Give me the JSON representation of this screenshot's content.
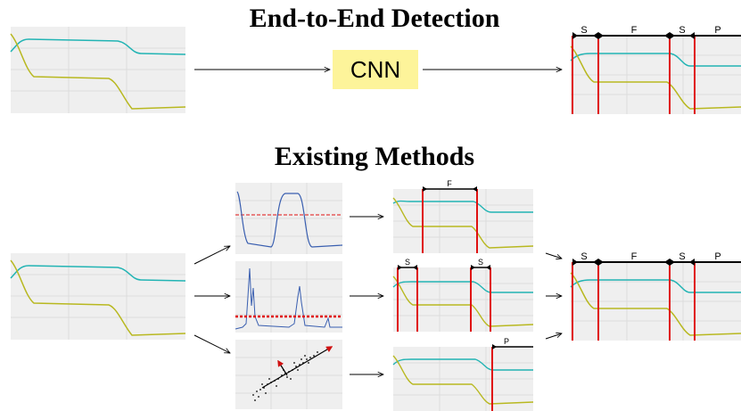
{
  "titles": {
    "top": "End-to-End Detection",
    "bottom": "Existing Methods"
  },
  "model_box": {
    "label": "CNN",
    "fill": "#fdf49a"
  },
  "segments": {
    "full_output": [
      "S",
      "F",
      "S",
      "P"
    ],
    "f_only": [
      "F"
    ],
    "s_only": [
      "S",
      "S"
    ],
    "p_only": [
      "P"
    ]
  },
  "colors": {
    "cyan": "#22b4b4",
    "olive": "#b8b820",
    "detection_line": "#e01010",
    "threshold": "#e01010",
    "feature_curve": "#3a5fb0",
    "grid": "#dcdcdc",
    "plot_bg": "#efefef"
  },
  "icons": [
    "arrow-right-icon",
    "arrow-diagonal-icon",
    "scatter-vector-icon"
  ]
}
